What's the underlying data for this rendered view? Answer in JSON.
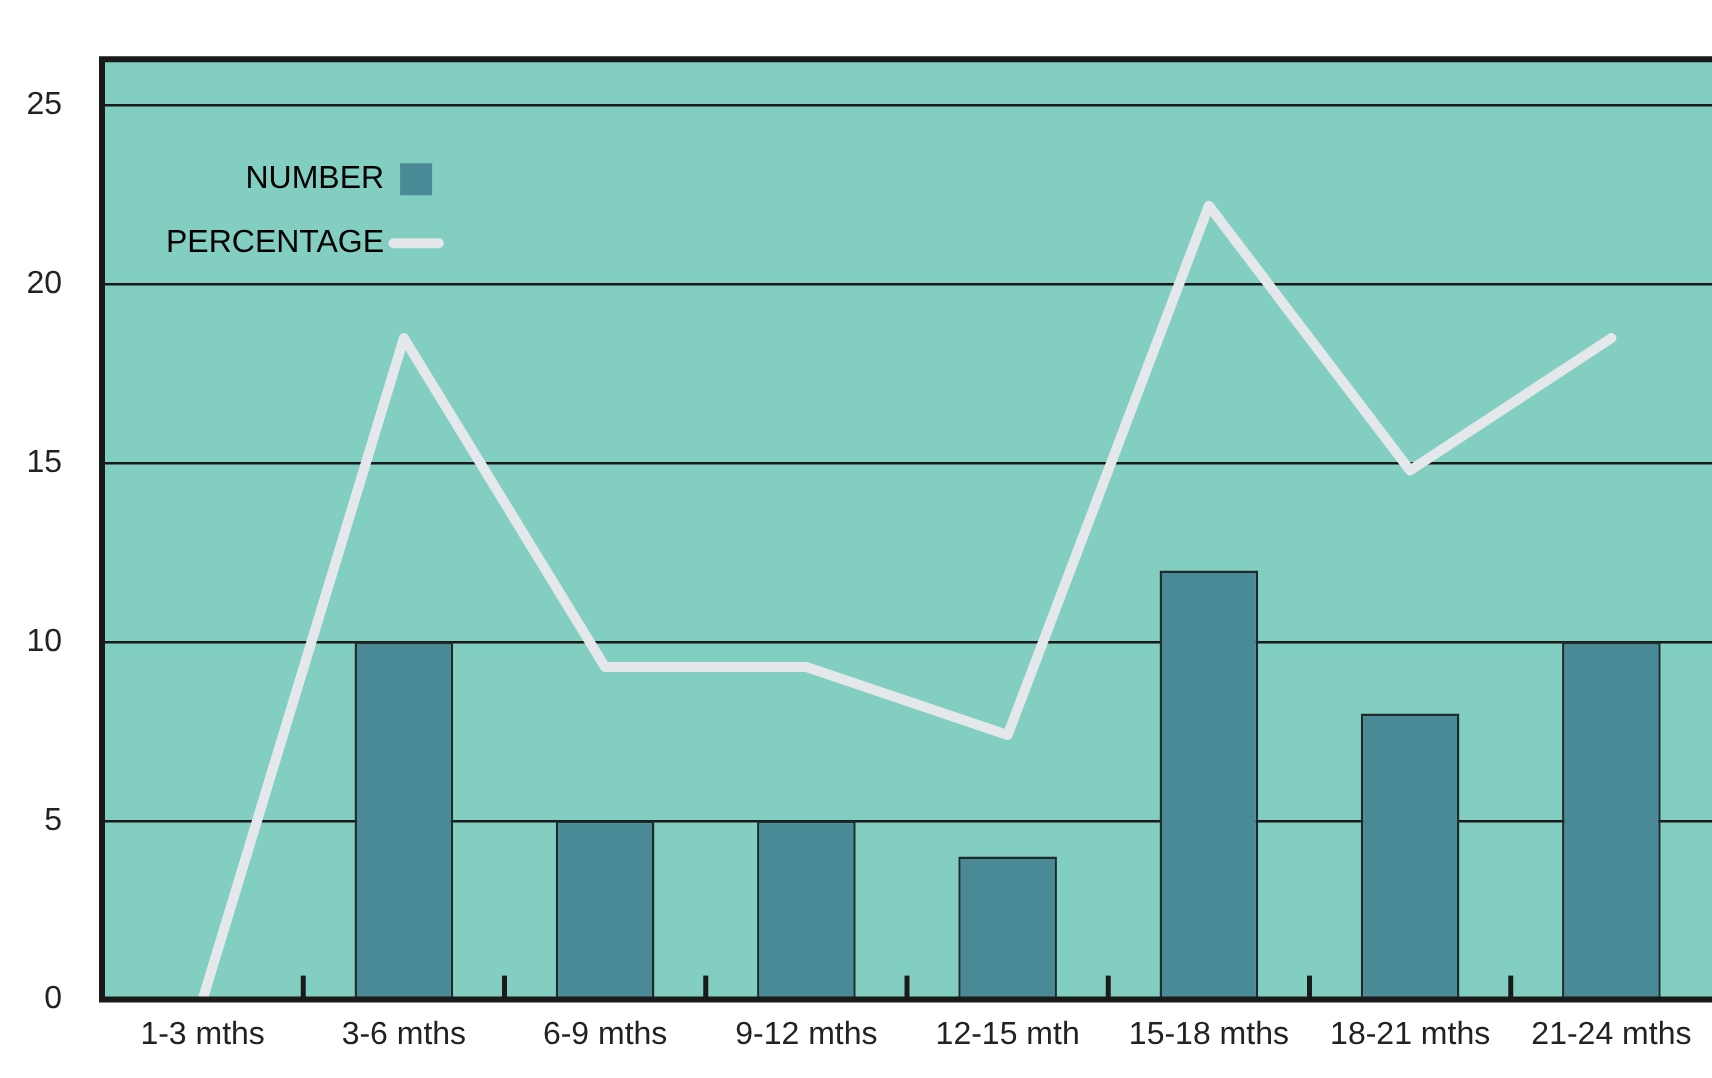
{
  "chart_data": {
    "type": "bar",
    "categories": [
      "1-3 mths",
      "3-6 mths",
      "6-9 mths",
      "9-12 mths",
      "12-15 mth",
      "15-18 mths",
      "18-21 mths",
      "21-24 mths"
    ],
    "series": [
      {
        "name": "NUMBER",
        "type": "bar",
        "color": "#4a8996",
        "values": [
          0,
          10,
          5,
          5,
          4,
          12,
          8,
          10
        ]
      },
      {
        "name": "PERCENTAGE",
        "type": "line",
        "color": "#e4e8ea",
        "values": [
          0,
          18.5,
          9.3,
          9.3,
          7.4,
          22.2,
          14.8,
          18.5
        ]
      }
    ],
    "ylim": [
      0,
      26.3
    ],
    "yticks": [
      0,
      5,
      10,
      15,
      20,
      25
    ],
    "grid": "y",
    "legend": "top left",
    "marker": "none"
  }
}
